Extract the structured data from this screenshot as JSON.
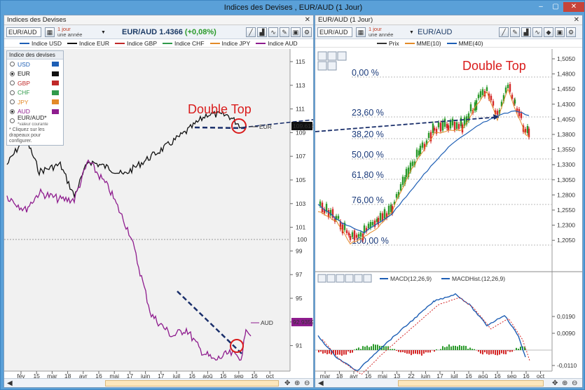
{
  "window": {
    "title": "Indices des Devises , EUR/AUD (1 Jour)",
    "minimize_glyph": "–",
    "maximize_glyph": "▢",
    "close_glyph": "✕"
  },
  "left": {
    "pane_title": "Indices des Devises",
    "symbol": "EUR/AUD",
    "period_line1": "1 jour",
    "period_line2": "une année",
    "instrument": "EUR/AUD",
    "price": "1.4366",
    "change": "(+0,08%)",
    "legend": [
      {
        "label": "Indice USD",
        "color": "#1e5fb5"
      },
      {
        "label": "Indice EUR",
        "color": "#111111"
      },
      {
        "label": "Indice GBP",
        "color": "#c02828"
      },
      {
        "label": "Indice CHF",
        "color": "#2f9a4a"
      },
      {
        "label": "Indice JPY",
        "color": "#e38a28"
      },
      {
        "label": "Indice AUD",
        "color": "#8e1c8e"
      }
    ],
    "currency_box": {
      "title": "Indice des devises",
      "items": [
        {
          "label": "USD",
          "checked": false,
          "color": "#1e5fb5"
        },
        {
          "label": "EUR",
          "checked": true,
          "color": "#111111"
        },
        {
          "label": "GBP",
          "checked": false,
          "color": "#c02828"
        },
        {
          "label": "CHF",
          "checked": false,
          "color": "#2f9a4a"
        },
        {
          "label": "JPY",
          "checked": false,
          "color": "#e38a28"
        },
        {
          "label": "AUD",
          "checked": true,
          "color": "#8e1c8e"
        }
      ],
      "pair_label": "EUR/AUD*",
      "pair_note": "*valeur courante",
      "hint": "* Cliquez sur les drapeaux pour configurer."
    },
    "annotation": "Double Top",
    "eur_label": "EUR",
    "aud_label": "AUD",
    "eur_value": "109.618",
    "aud_value": "92.9359",
    "ref_value": "100",
    "y_ticks": [
      "115",
      "113",
      "111",
      "109",
      "107",
      "105",
      "103",
      "101",
      "99",
      "97",
      "95",
      "93",
      "91"
    ],
    "x_ticks": [
      "fév",
      "15",
      "mar",
      "18",
      "avr",
      "16",
      "mai",
      "17",
      "juin",
      "17",
      "juil",
      "16",
      "aoû",
      "16",
      "sep",
      "16",
      "oct"
    ]
  },
  "right": {
    "pane_title": "EUR/AUD (1 Jour)",
    "symbol": "EUR/AUD",
    "period_line1": "1 jour",
    "period_line2": "une année",
    "instrument": "EUR/AUD",
    "legend": [
      {
        "label": "Prix",
        "color": "#333333"
      },
      {
        "label": "MME(10)",
        "color": "#e38a28"
      },
      {
        "label": "MME(40)",
        "color": "#1e5fb5"
      }
    ],
    "annotation": "Double Top",
    "fibo": [
      "0,00 %",
      "23,60 %",
      "38,20 %",
      "50,00 %",
      "61,80 %",
      "76,00 %",
      "100,00 %"
    ],
    "y_ticks": [
      "1,5050",
      "1,4800",
      "1,4550",
      "1,4300",
      "1,4050",
      "1,3800",
      "1,3550",
      "1,3300",
      "1,3050",
      "1,2800",
      "1,2550",
      "1,2300",
      "1,2050"
    ],
    "macd_legend": [
      {
        "label": "MACD(12,26,9)",
        "color": "#1e5fb5"
      },
      {
        "label": "MACDHist.(12,26,9)",
        "color": "#1e5fb5"
      }
    ],
    "macd_ticks": [
      "0,0190",
      "0,0090",
      "-0,0110"
    ],
    "x_ticks": [
      "mar",
      "18",
      "avr",
      "16",
      "mai",
      "13",
      "22",
      "juin",
      "17",
      "juil",
      "16",
      "aoû",
      "16",
      "sep",
      "16",
      "oct"
    ]
  }
}
